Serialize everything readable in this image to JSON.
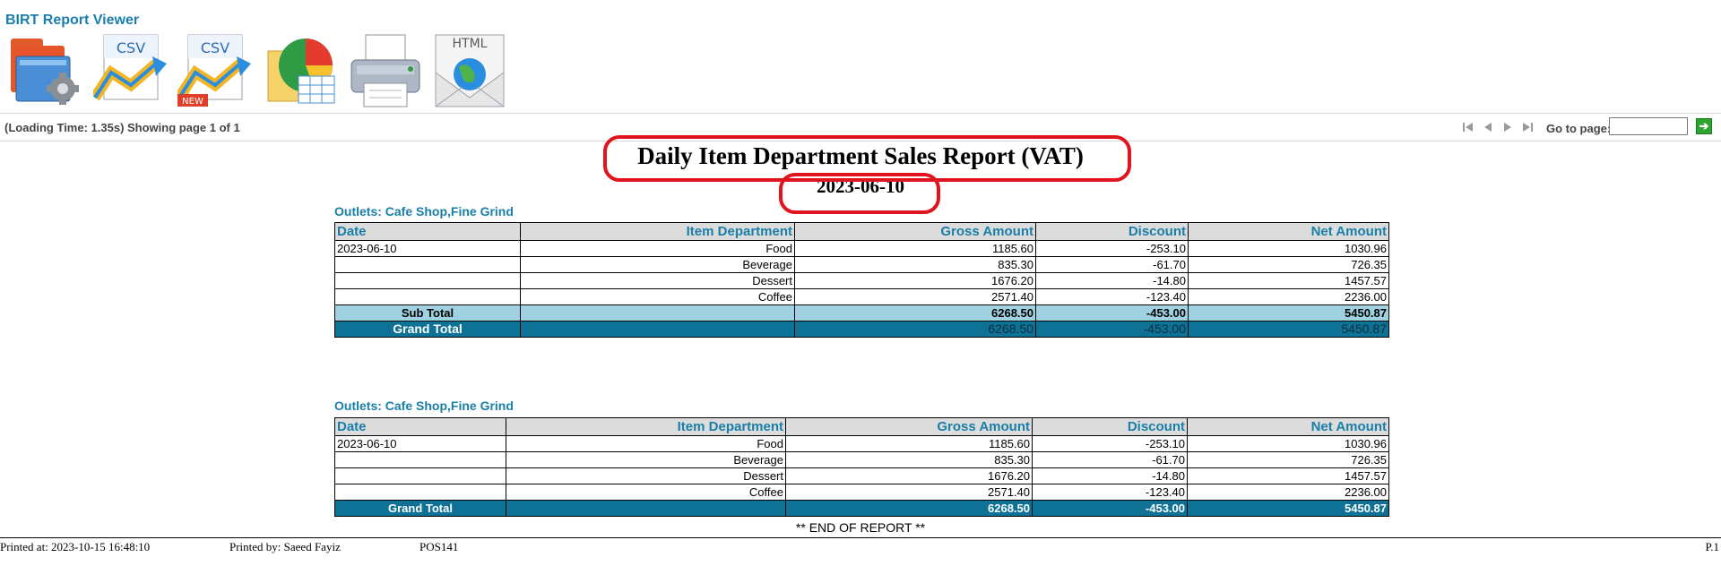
{
  "app": {
    "title": "BIRT Report Viewer"
  },
  "toolbar": {
    "buttons": [
      {
        "name": "export-folder-gear-icon"
      },
      {
        "name": "export-csv-icon",
        "label": "CSV"
      },
      {
        "name": "export-csv-new-icon",
        "label": "CSV",
        "badge": "NEW"
      },
      {
        "name": "export-chart-icon"
      },
      {
        "name": "print-icon"
      },
      {
        "name": "export-html-email-icon",
        "label": "HTML"
      }
    ]
  },
  "status": {
    "text": "(Loading Time: 1.35s) Showing page  1  of  1",
    "goto_label": "Go to page:",
    "goto_value": "",
    "go_glyph": "➔"
  },
  "report": {
    "title": "Daily Item Department Sales Report (VAT)",
    "date": "2023-06-10",
    "highlight_color": "#e0141e",
    "header_color": "#1a7fa8",
    "grand_total_color": "#0e7196",
    "subtotal_color": "#9fd1e0",
    "columns": [
      "Date",
      "Item Department",
      "Gross Amount",
      "Discount",
      "Net Amount"
    ],
    "section1": {
      "outlets": "Outlets: Cafe Shop,Fine Grind",
      "rows": [
        {
          "date": "2023-06-10",
          "dept": "Food",
          "gross": "1185.60",
          "discount": "-253.10",
          "net": "1030.96"
        },
        {
          "date": "",
          "dept": "Beverage",
          "gross": "835.30",
          "discount": "-61.70",
          "net": "726.35"
        },
        {
          "date": "",
          "dept": "Dessert",
          "gross": "1676.20",
          "discount": "-14.80",
          "net": "1457.57"
        },
        {
          "date": "",
          "dept": "Coffee",
          "gross": "2571.40",
          "discount": "-123.40",
          "net": "2236.00"
        }
      ],
      "subtotal": {
        "label": "Sub Total",
        "gross": "6268.50",
        "discount": "-453.00",
        "net": "5450.87"
      },
      "grandtotal": {
        "label": "Grand Total",
        "gross": "6268.50",
        "discount": "-453.00",
        "net": "5450.87"
      }
    },
    "section2": {
      "outlets": "Outlets: Cafe Shop,Fine Grind",
      "rows": [
        {
          "date": "2023-06-10",
          "dept": "Food",
          "gross": "1185.60",
          "discount": "-253.10",
          "net": "1030.96"
        },
        {
          "date": "",
          "dept": "Beverage",
          "gross": "835.30",
          "discount": "-61.70",
          "net": "726.35"
        },
        {
          "date": "",
          "dept": "Dessert",
          "gross": "1676.20",
          "discount": "-14.80",
          "net": "1457.57"
        },
        {
          "date": "",
          "dept": "Coffee",
          "gross": "2571.40",
          "discount": "-123.40",
          "net": "2236.00"
        }
      ],
      "grandtotal": {
        "label": "Grand Total",
        "gross": "6268.50",
        "discount": "-453.00",
        "net": "5450.87"
      }
    },
    "end_text": "** END OF REPORT **"
  },
  "footer": {
    "printed_at": "Printed at: 2023-10-15 16:48:10",
    "printed_by": "Printed by: Saeed Fayiz",
    "terminal": "POS141",
    "page": "P.1"
  }
}
